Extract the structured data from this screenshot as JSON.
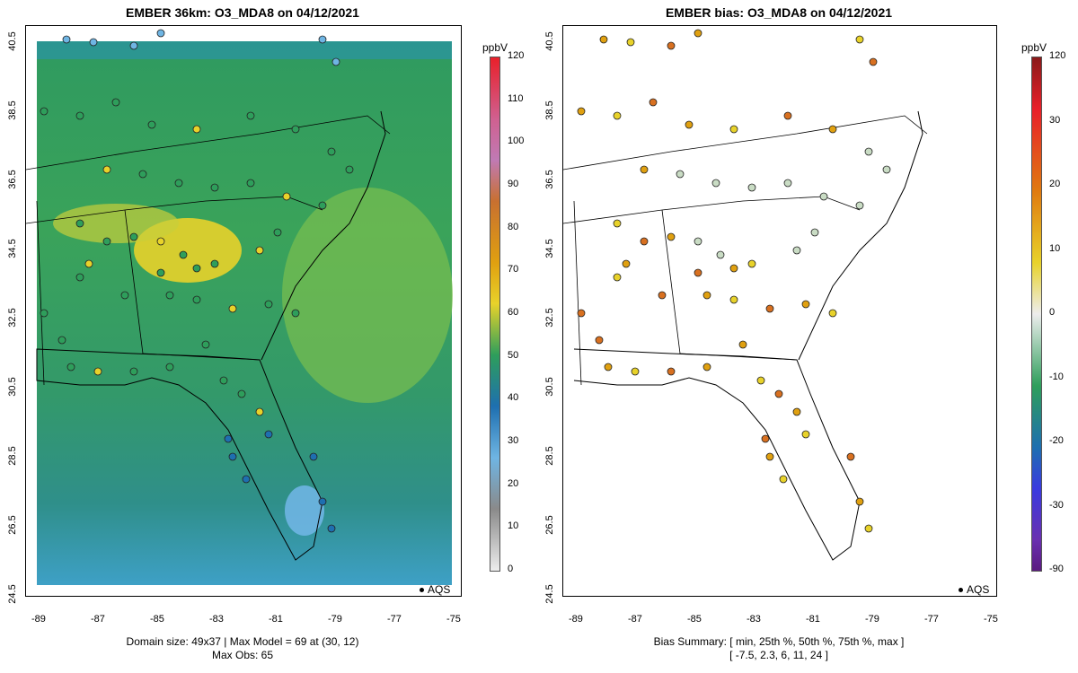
{
  "left_map": {
    "title": "EMBER 36km: O3_MDA8 on 04/12/2021",
    "xticks": [
      "-89",
      "-87",
      "-85",
      "-83",
      "-81",
      "-79",
      "-77",
      "-75"
    ],
    "yticks": [
      "40.5",
      "38.5",
      "36.5",
      "34.5",
      "32.5",
      "30.5",
      "28.5",
      "26.5",
      "24.5"
    ],
    "caption_line1": "Domain size: 49x37 | Max Model = 69 at (30, 12)",
    "caption_line2": "Max Obs: 65",
    "legend_label": "AQS",
    "colorbar": {
      "unit": "ppbV",
      "labels": [
        "120",
        "110",
        "100",
        "90",
        "80",
        "70",
        "60",
        "50",
        "40",
        "30",
        "20",
        "10",
        "0"
      ]
    }
  },
  "right_map": {
    "title": "EMBER bias: O3_MDA8 on 04/12/2021",
    "xticks": [
      "-89",
      "-87",
      "-85",
      "-83",
      "-81",
      "-79",
      "-77",
      "-75"
    ],
    "yticks": [
      "40.5",
      "38.5",
      "36.5",
      "34.5",
      "32.5",
      "30.5",
      "28.5",
      "26.5",
      "24.5"
    ],
    "caption_line1": "Bias Summary: [ min, 25th %, 50th %, 75th %, max ]",
    "caption_line2": "[ -7.5,   2.3,   6,   11,   24 ]",
    "legend_label": "AQS",
    "colorbar": {
      "unit": "ppbV",
      "labels": [
        "120",
        "30",
        "20",
        "10",
        "0",
        "-10",
        "-20",
        "-30",
        "-90"
      ]
    }
  },
  "colors": {
    "green": "#2e9e5b",
    "yellow": "#e8d22a",
    "blue": "#1e6fb0",
    "lightblue": "#6fb5e3",
    "orange": "#e08a14",
    "sea": "#59b46a"
  }
}
